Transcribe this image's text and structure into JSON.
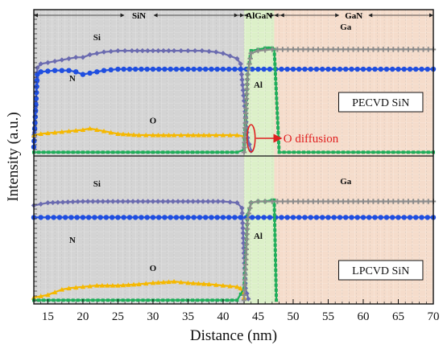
{
  "chart_data": {
    "type": "line",
    "xlabel": "Distance (nm)",
    "ylabel": "Intensity (a.u.)",
    "xlim": [
      13,
      70
    ],
    "x_ticks": [
      15,
      20,
      25,
      30,
      35,
      40,
      45,
      50,
      55,
      60,
      65,
      70
    ],
    "regions": [
      {
        "name": "SiN",
        "from": 13,
        "to": 43,
        "color": "#d4d4d4"
      },
      {
        "name": "AlGaN",
        "from": 43,
        "to": 47.3,
        "color": "#dcf0c8"
      },
      {
        "name": "GaN",
        "from": 47.3,
        "to": 70,
        "color": "#f5dccb"
      }
    ],
    "panels": [
      {
        "name": "PECVD SiN",
        "ylim": [
          0,
          100
        ],
        "series": [
          {
            "name": "Si",
            "color": "#6b6bb0",
            "marker": "diamond",
            "x": [
              13,
              13.5,
              14,
              15,
              16,
              17,
              18,
              19,
              20,
              21,
              22,
              23,
              25,
              27,
              30,
              33,
              35,
              37,
              39,
              40,
              41,
              42,
              42.5,
              43,
              43.5,
              44
            ],
            "y": [
              5,
              65,
              68,
              69,
              70,
              71,
              72,
              73,
              73,
              75,
              76,
              77,
              78,
              78,
              78,
              78,
              78,
              78,
              77,
              76,
              74,
              72,
              68,
              40,
              12,
              2
            ]
          },
          {
            "name": "N",
            "color": "#1f4ee0",
            "marker": "circle",
            "x": [
              13,
              13.5,
              14,
              16,
              18,
              19,
              20,
              21,
              23,
              25,
              30,
              35,
              40,
              45,
              50,
              55,
              60,
              65,
              70
            ],
            "y": [
              5,
              60,
              62,
              63,
              63,
              62,
              60,
              61,
              63,
              64,
              64,
              64,
              64,
              64,
              64,
              64,
              64,
              64,
              64
            ]
          },
          {
            "name": "O",
            "color": "#f5b800",
            "marker": "triangle",
            "x": [
              13,
              14,
              16,
              18,
              20,
              21,
              22,
              23,
              25,
              28,
              30,
              33,
              35,
              38,
              40,
              42,
              43
            ],
            "y": [
              14,
              15,
              16,
              17,
              18,
              19,
              18,
              17,
              15,
              14,
              14,
              14,
              14,
              14,
              14,
              14,
              13
            ]
          },
          {
            "name": "Al",
            "color": "#1fae5a",
            "marker": "square",
            "x": [
              13,
              20,
              30,
              42,
              43,
              43.5,
              44,
              45,
              46,
              46.5,
              47,
              47.3,
              48,
              55,
              70
            ],
            "y": [
              1,
              1,
              1,
              1,
              3,
              60,
              78,
              79,
              80,
              80,
              80,
              79,
              1,
              1,
              1
            ]
          },
          {
            "name": "Ga",
            "color": "#8c8c8c",
            "marker": "plus",
            "x": [
              43,
              43.5,
              44,
              45,
              47,
              50,
              55,
              60,
              65,
              70
            ],
            "y": [
              1,
              60,
              76,
              78,
              79,
              79,
              79,
              79,
              79,
              79
            ]
          }
        ]
      },
      {
        "name": "LPCVD SiN",
        "ylim": [
          0,
          100
        ],
        "series": [
          {
            "name": "Si",
            "color": "#6b6bb0",
            "marker": "diamond",
            "x": [
              13,
              14,
              15,
              20,
              25,
              30,
              35,
              40,
              42,
              42.7,
              43.2,
              43.6
            ],
            "y": [
              72,
              73,
              74,
              75,
              75,
              75,
              75,
              75,
              74,
              70,
              10,
              2
            ]
          },
          {
            "name": "N",
            "color": "#1f4ee0",
            "marker": "circle",
            "x": [
              13,
              15,
              20,
              25,
              30,
              35,
              40,
              45,
              50,
              55,
              60,
              65,
              70
            ],
            "y": [
              63,
              63,
              63,
              63,
              63,
              63,
              63,
              63,
              63,
              63,
              63,
              63,
              63
            ]
          },
          {
            "name": "O",
            "color": "#f5b800",
            "marker": "triangle",
            "x": [
              13,
              14,
              15,
              16,
              17,
              18,
              20,
              22,
              25,
              28,
              30,
              33,
              35,
              38,
              40,
              42,
              42.5,
              43
            ],
            "y": [
              3,
              4,
              5,
              7,
              9,
              10,
              11,
              12,
              12,
              13,
              14,
              15,
              14,
              13,
              12,
              11,
              10,
              3
            ]
          },
          {
            "name": "Al",
            "color": "#1fae5a",
            "marker": "square",
            "x": [
              13,
              20,
              30,
              42,
              43,
              43.5,
              44,
              45,
              46,
              47,
              47.3,
              47.6
            ],
            "y": [
              1,
              1,
              1,
              1,
              10,
              65,
              74,
              75,
              75,
              76,
              76,
              1
            ]
          },
          {
            "name": "Ga",
            "color": "#8c8c8c",
            "marker": "plus",
            "x": [
              43,
              43.5,
              44,
              45,
              47,
              50,
              55,
              60,
              65,
              70
            ],
            "y": [
              1,
              62,
              74,
              75,
              75,
              75,
              75,
              75,
              75,
              75
            ]
          }
        ]
      }
    ],
    "annotation": {
      "text": "O diffusion",
      "x": 44,
      "panel": 0
    }
  }
}
